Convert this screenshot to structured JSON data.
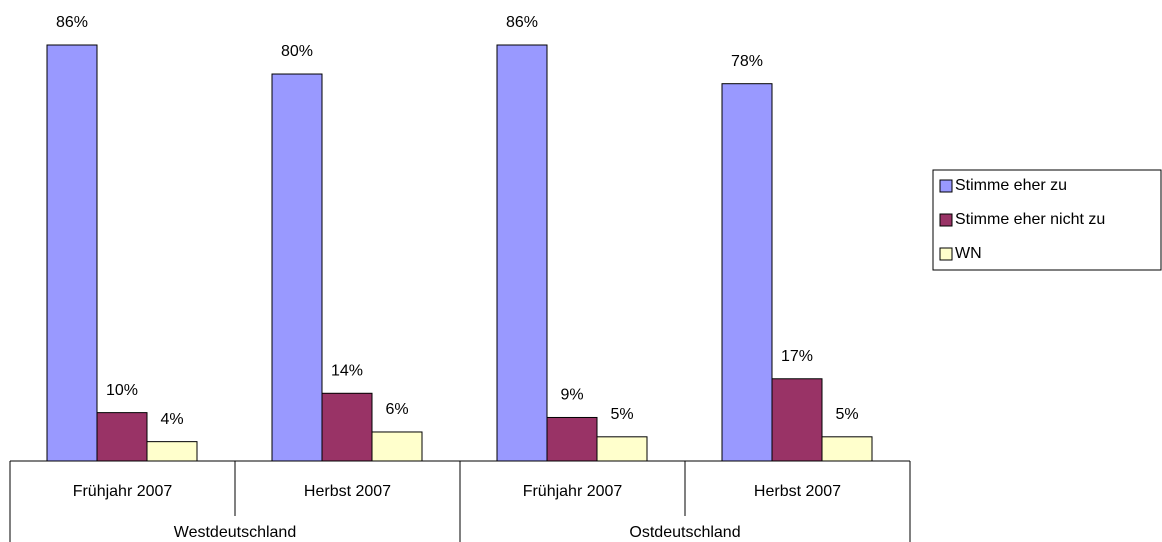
{
  "chart_data": {
    "type": "bar",
    "groups": [
      "Westdeutschland",
      "Ostdeutschland"
    ],
    "categories": [
      "Frühjahr 2007",
      "Herbst 2007",
      "Frühjahr 2007",
      "Herbst 2007"
    ],
    "series": [
      {
        "name": "Stimme eher zu",
        "color": "#9999ff",
        "values": [
          86,
          80,
          86,
          78
        ],
        "value_labels": [
          "86%",
          "80%",
          "86%",
          "78%"
        ]
      },
      {
        "name": "Stimme eher nicht zu",
        "color": "#993366",
        "values": [
          10,
          14,
          9,
          17
        ],
        "value_labels": [
          "10%",
          "14%",
          "9%",
          "17%"
        ]
      },
      {
        "name": "WN",
        "color": "#ffffcc",
        "values": [
          4,
          6,
          5,
          5
        ],
        "value_labels": [
          "4%",
          "6%",
          "5%",
          "5%"
        ]
      }
    ],
    "legend": "right"
  }
}
